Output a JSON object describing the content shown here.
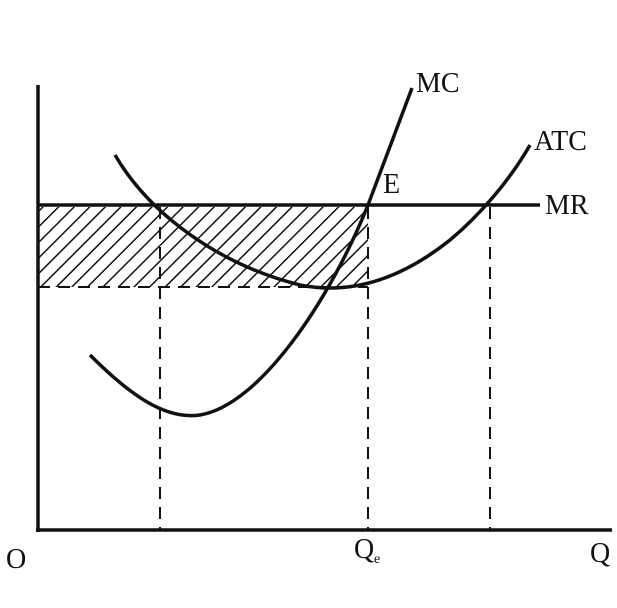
{
  "labels": {
    "mc": "MC",
    "atc": "ATC",
    "e": "E",
    "mr": "MR",
    "origin": "O",
    "qe": {
      "main": "Q",
      "sub": "e"
    },
    "q": "Q"
  }
}
